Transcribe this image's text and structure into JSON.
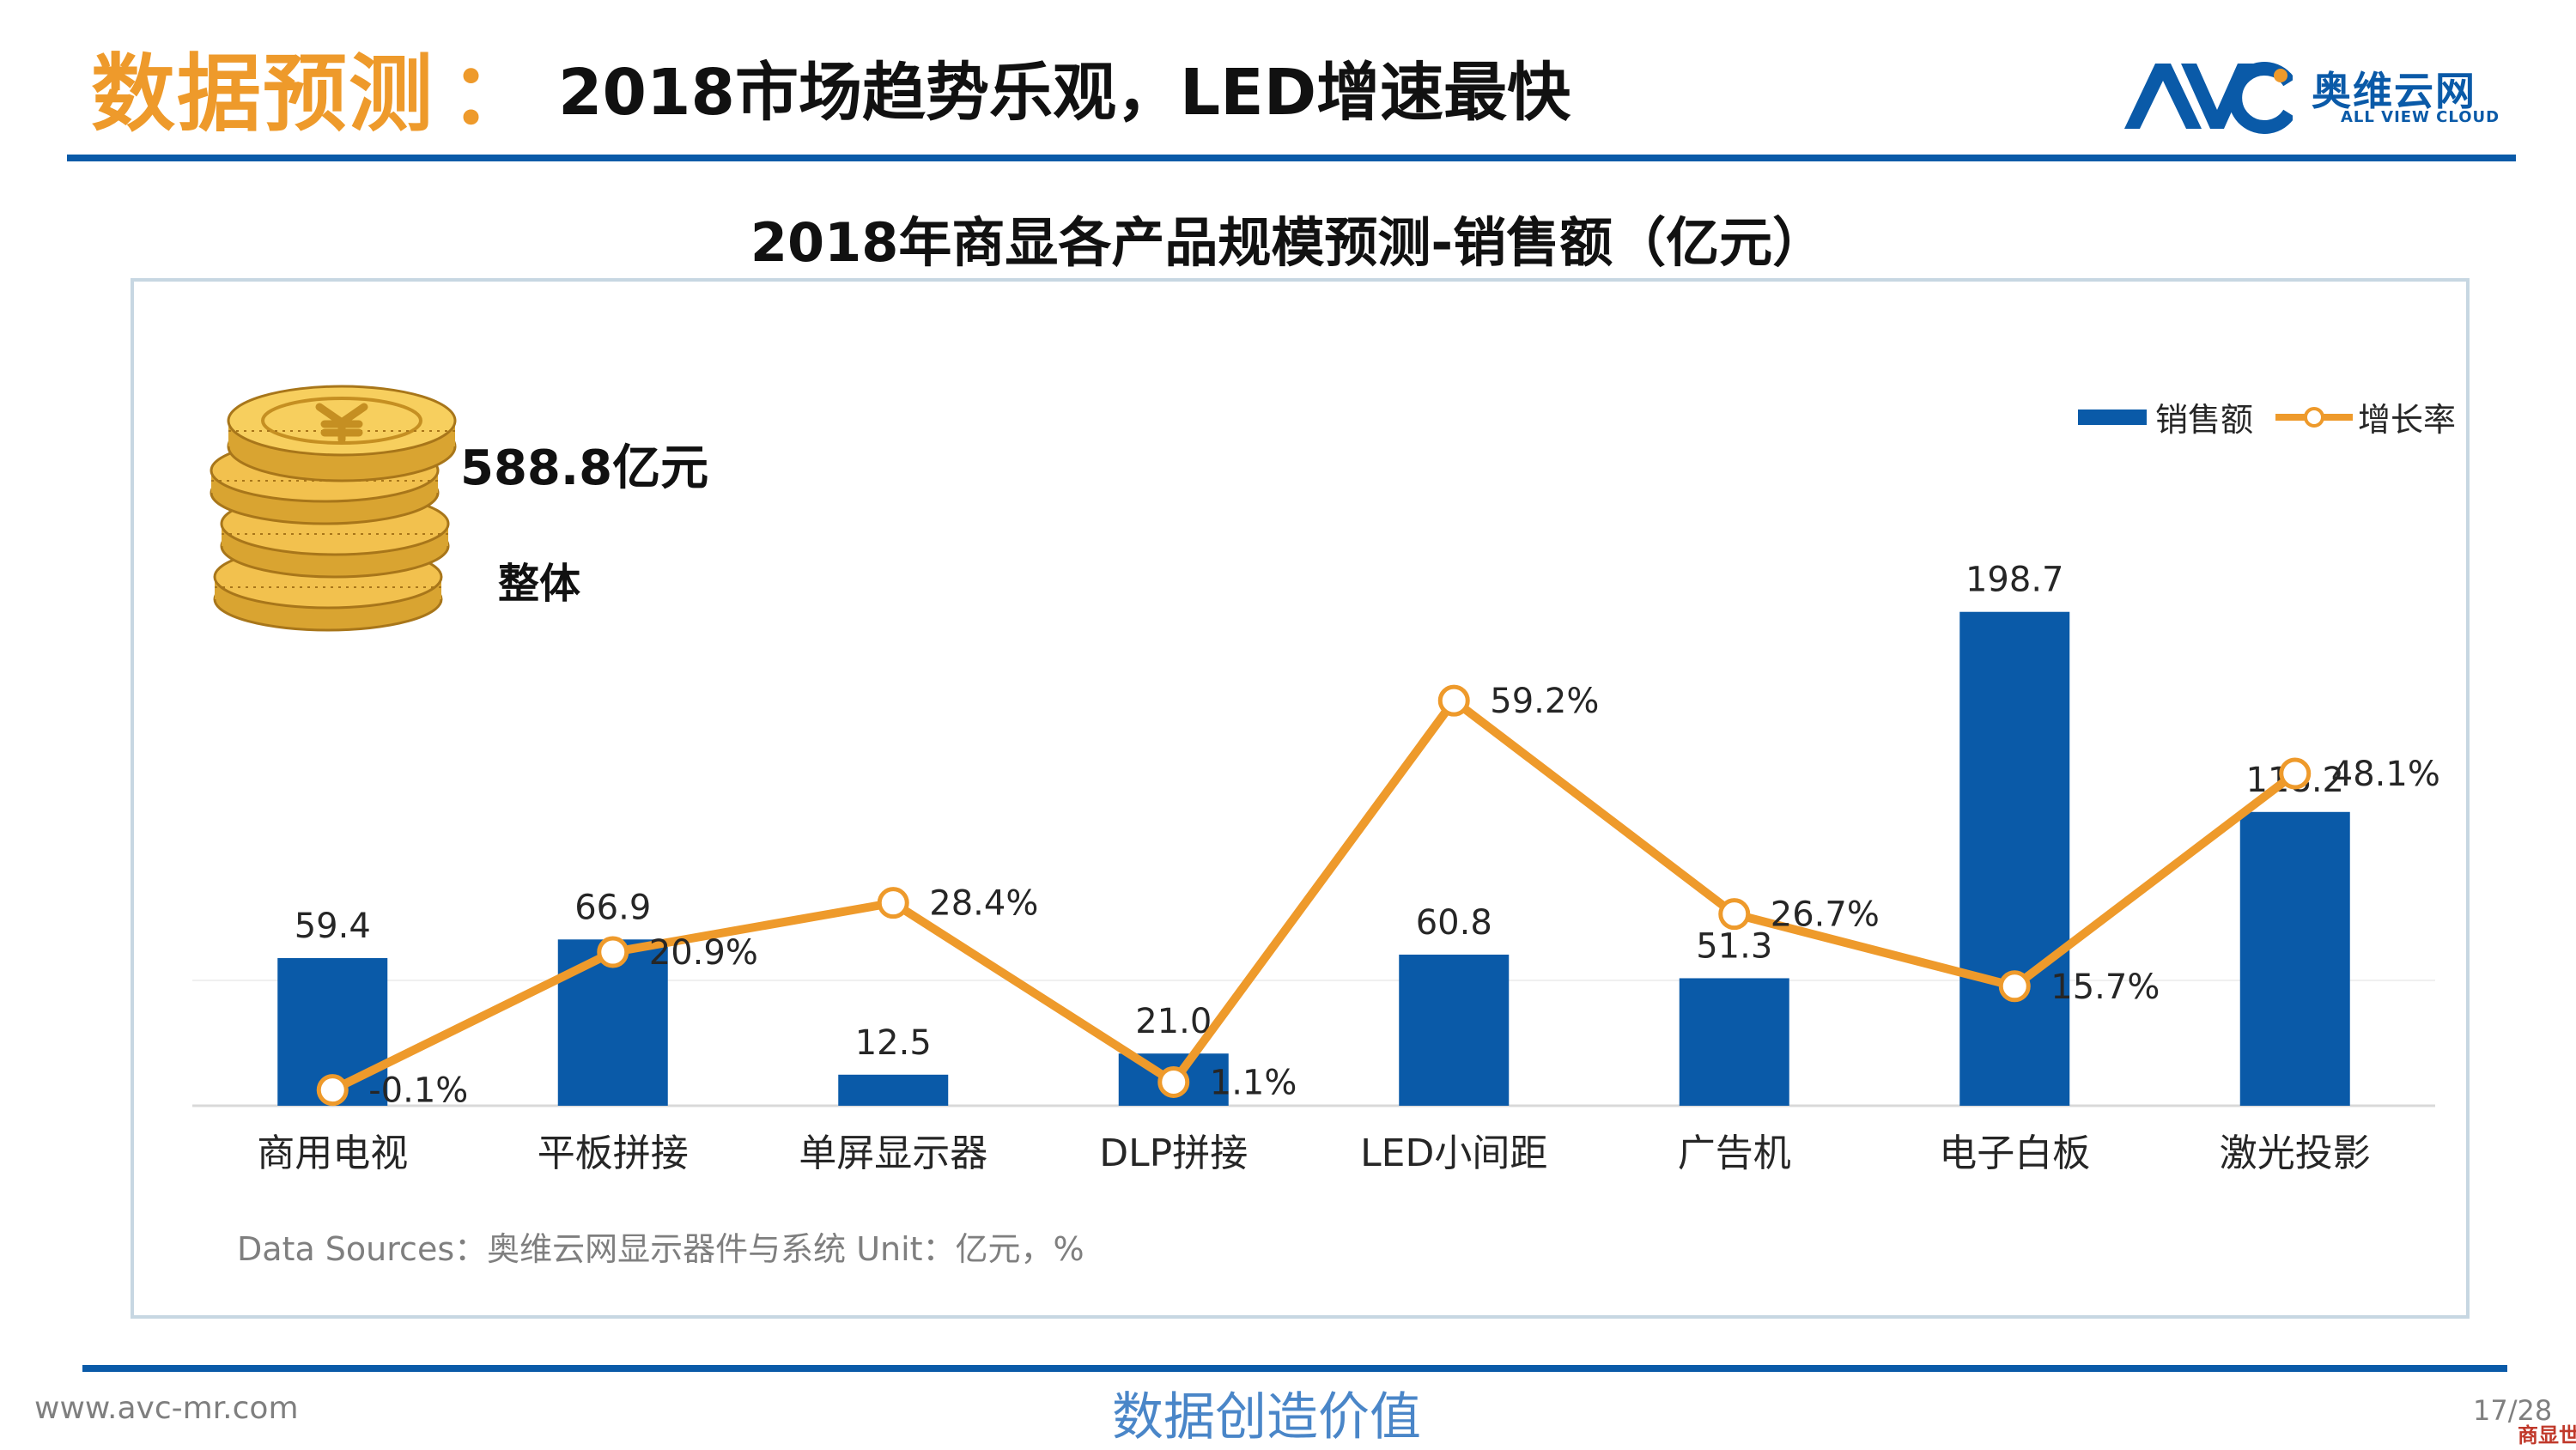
{
  "header": {
    "accent": "数据预测",
    "colon": "：",
    "title": "2018市场趋势乐观，LED增速最快"
  },
  "logo": {
    "cn": "奥维云网",
    "en": "ALL VIEW CLOUD",
    "mark": "AVC"
  },
  "total": {
    "value": "588.8亿元",
    "label": "整体"
  },
  "legend": {
    "bar": "销售额",
    "line": "增长率"
  },
  "source": "Data Sources：奥维云网显示器件与系统    Unit：亿元，%",
  "footer": {
    "url": "www.avc-mr.com",
    "slogan": "数据创造价值",
    "page": "17/28",
    "watermark": "商显世界"
  },
  "colors": {
    "bar": "#0a5aa8",
    "line": "#ee9a2b",
    "accent": "#ee9a2b",
    "brand": "#0a5aa8"
  },
  "icons": {
    "coins": "yuan-coin-stack-icon"
  },
  "chart_data": {
    "type": "bar",
    "title": "2018年商显各产品规模预测-销售额（亿元）",
    "categories": [
      "商用电视",
      "平板拼接",
      "单屏显示器",
      "DLP拼接",
      "LED小间距",
      "广告机",
      "电子白板",
      "激光投影"
    ],
    "series": [
      {
        "name": "销售额",
        "type": "bar",
        "values": [
          59.4,
          66.9,
          12.5,
          21.0,
          60.8,
          51.3,
          198.7,
          118.2
        ],
        "labels": [
          "59.4",
          "66.9",
          "12.5",
          "21.0",
          "60.8",
          "51.3",
          "198.7",
          "118.2"
        ]
      },
      {
        "name": "增长率",
        "type": "line",
        "values": [
          -0.1,
          20.9,
          28.4,
          1.1,
          59.2,
          26.7,
          15.7,
          48.1
        ],
        "labels": [
          "-0.1%",
          "20.9%",
          "28.4%",
          "1.1%",
          "59.2%",
          "26.7%",
          "15.7%",
          "48.1%"
        ]
      }
    ],
    "ylim": [
      0,
      210
    ],
    "y2lim": [
      -2.5,
      77
    ],
    "grid": false,
    "legend": "top-right",
    "xlabel": "",
    "ylabel": ""
  }
}
